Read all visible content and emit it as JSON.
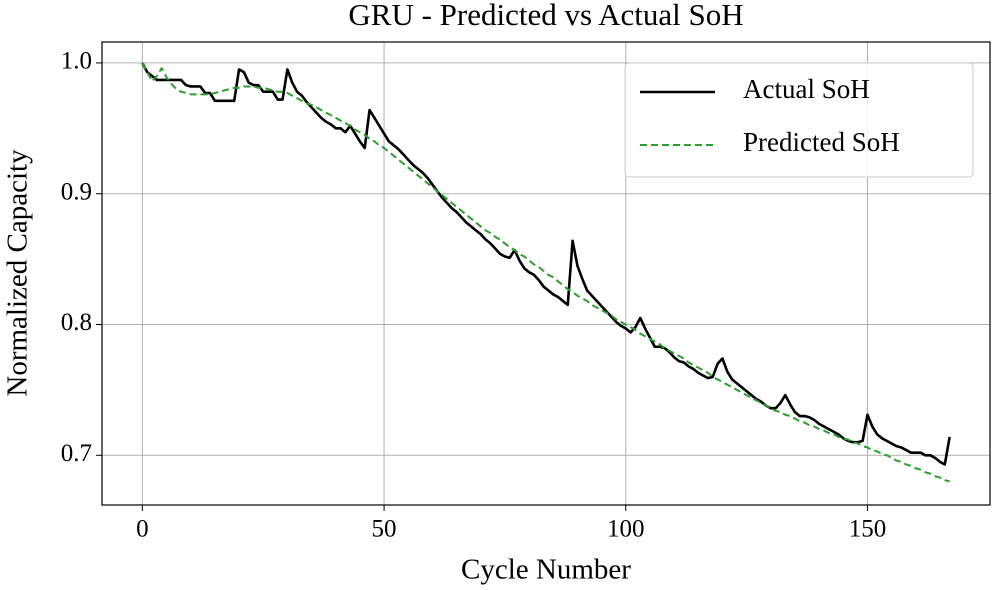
{
  "chart_data": {
    "type": "line",
    "title": "GRU - Predicted vs Actual SoH",
    "xlabel": "Cycle Number",
    "ylabel": "Normalized Capacity",
    "x": [
      0,
      1,
      2,
      3,
      4,
      5,
      6,
      7,
      8,
      9,
      10,
      11,
      12,
      13,
      14,
      15,
      16,
      17,
      18,
      19,
      20,
      21,
      22,
      23,
      24,
      25,
      26,
      27,
      28,
      29,
      30,
      31,
      32,
      33,
      34,
      35,
      36,
      37,
      38,
      39,
      40,
      41,
      42,
      43,
      44,
      45,
      46,
      47,
      48,
      49,
      50,
      51,
      52,
      53,
      54,
      55,
      56,
      57,
      58,
      59,
      60,
      61,
      62,
      63,
      64,
      65,
      66,
      67,
      68,
      69,
      70,
      71,
      72,
      73,
      74,
      75,
      76,
      77,
      78,
      79,
      80,
      81,
      82,
      83,
      84,
      85,
      86,
      87,
      88,
      89,
      90,
      91,
      92,
      93,
      94,
      95,
      96,
      97,
      98,
      99,
      100,
      101,
      102,
      103,
      104,
      105,
      106,
      107,
      108,
      109,
      110,
      111,
      112,
      113,
      114,
      115,
      116,
      117,
      118,
      119,
      120,
      121,
      122,
      123,
      124,
      125,
      126,
      127,
      128,
      129,
      130,
      131,
      132,
      133,
      134,
      135,
      136,
      137,
      138,
      139,
      140,
      141,
      142,
      143,
      144,
      145,
      146,
      147,
      148,
      149,
      150,
      151,
      152,
      153,
      154,
      155,
      156,
      157,
      158,
      159,
      160,
      161,
      162,
      163,
      164,
      165,
      166,
      167
    ],
    "series": [
      {
        "name": "Actual SoH",
        "color": "#000000",
        "dash": false,
        "values": [
          1.0,
          0.993,
          0.99,
          0.987,
          0.987,
          0.987,
          0.987,
          0.987,
          0.987,
          0.983,
          0.982,
          0.982,
          0.982,
          0.977,
          0.977,
          0.971,
          0.971,
          0.971,
          0.971,
          0.971,
          0.995,
          0.993,
          0.985,
          0.983,
          0.983,
          0.978,
          0.978,
          0.978,
          0.972,
          0.972,
          0.995,
          0.985,
          0.978,
          0.975,
          0.97,
          0.966,
          0.962,
          0.958,
          0.955,
          0.953,
          0.95,
          0.95,
          0.947,
          0.952,
          0.946,
          0.94,
          0.935,
          0.964,
          0.958,
          0.952,
          0.946,
          0.94,
          0.937,
          0.934,
          0.93,
          0.926,
          0.922,
          0.919,
          0.916,
          0.912,
          0.907,
          0.902,
          0.897,
          0.893,
          0.889,
          0.886,
          0.882,
          0.878,
          0.875,
          0.872,
          0.869,
          0.865,
          0.862,
          0.858,
          0.854,
          0.852,
          0.851,
          0.857,
          0.849,
          0.843,
          0.84,
          0.838,
          0.834,
          0.829,
          0.826,
          0.823,
          0.821,
          0.818,
          0.815,
          0.864,
          0.845,
          0.835,
          0.826,
          0.822,
          0.818,
          0.814,
          0.81,
          0.806,
          0.802,
          0.799,
          0.797,
          0.794,
          0.798,
          0.805,
          0.797,
          0.79,
          0.783,
          0.783,
          0.782,
          0.779,
          0.775,
          0.772,
          0.771,
          0.768,
          0.766,
          0.763,
          0.761,
          0.759,
          0.76,
          0.77,
          0.774,
          0.764,
          0.758,
          0.755,
          0.752,
          0.749,
          0.746,
          0.743,
          0.741,
          0.738,
          0.736,
          0.736,
          0.74,
          0.746,
          0.739,
          0.733,
          0.73,
          0.73,
          0.729,
          0.727,
          0.724,
          0.722,
          0.72,
          0.718,
          0.716,
          0.713,
          0.711,
          0.71,
          0.71,
          0.711,
          0.731,
          0.722,
          0.716,
          0.713,
          0.711,
          0.709,
          0.707,
          0.706,
          0.704,
          0.702,
          0.702,
          0.702,
          0.7,
          0.7,
          0.698,
          0.695,
          0.693,
          0.714
        ]
      },
      {
        "name": "Predicted SoH",
        "color": "#2ca02c",
        "dash": true,
        "values": [
          1.0,
          0.993,
          0.986,
          0.99,
          0.996,
          0.989,
          0.984,
          0.98,
          0.978,
          0.977,
          0.976,
          0.976,
          0.976,
          0.976,
          0.976,
          0.977,
          0.978,
          0.979,
          0.98,
          0.981,
          0.981,
          0.982,
          0.982,
          0.982,
          0.981,
          0.981,
          0.98,
          0.979,
          0.978,
          0.978,
          0.977,
          0.975,
          0.973,
          0.971,
          0.969,
          0.968,
          0.966,
          0.964,
          0.962,
          0.96,
          0.958,
          0.956,
          0.954,
          0.952,
          0.949,
          0.947,
          0.945,
          0.942,
          0.94,
          0.937,
          0.935,
          0.932,
          0.929,
          0.926,
          0.923,
          0.92,
          0.917,
          0.914,
          0.911,
          0.908,
          0.905,
          0.902,
          0.899,
          0.896,
          0.893,
          0.89,
          0.887,
          0.884,
          0.881,
          0.878,
          0.875,
          0.872,
          0.87,
          0.867,
          0.865,
          0.862,
          0.859,
          0.857,
          0.854,
          0.852,
          0.849,
          0.846,
          0.844,
          0.841,
          0.838,
          0.836,
          0.833,
          0.83,
          0.827,
          0.825,
          0.822,
          0.82,
          0.818,
          0.815,
          0.813,
          0.811,
          0.809,
          0.807,
          0.804,
          0.802,
          0.8,
          0.798,
          0.796,
          0.793,
          0.791,
          0.789,
          0.787,
          0.785,
          0.782,
          0.78,
          0.778,
          0.776,
          0.774,
          0.771,
          0.769,
          0.767,
          0.765,
          0.763,
          0.76,
          0.758,
          0.756,
          0.754,
          0.752,
          0.75,
          0.748,
          0.746,
          0.744,
          0.742,
          0.74,
          0.738,
          0.736,
          0.734,
          0.733,
          0.731,
          0.73,
          0.728,
          0.726,
          0.725,
          0.723,
          0.722,
          0.72,
          0.719,
          0.717,
          0.716,
          0.714,
          0.713,
          0.712,
          0.71,
          0.709,
          0.707,
          0.706,
          0.704,
          0.703,
          0.701,
          0.7,
          0.698,
          0.696,
          0.695,
          0.693,
          0.692,
          0.69,
          0.689,
          0.687,
          0.686,
          0.684,
          0.683,
          0.681,
          0.68
        ]
      }
    ],
    "xlim": [
      -8.35,
      175.35
    ],
    "ylim": [
      0.662,
      1.016
    ],
    "xticks": [
      0,
      50,
      100,
      150
    ],
    "yticks": [
      0.7,
      0.8,
      0.9,
      {
        "value": 1,
        "label": "1.0"
      }
    ],
    "grid": true,
    "legend": "upper right"
  }
}
